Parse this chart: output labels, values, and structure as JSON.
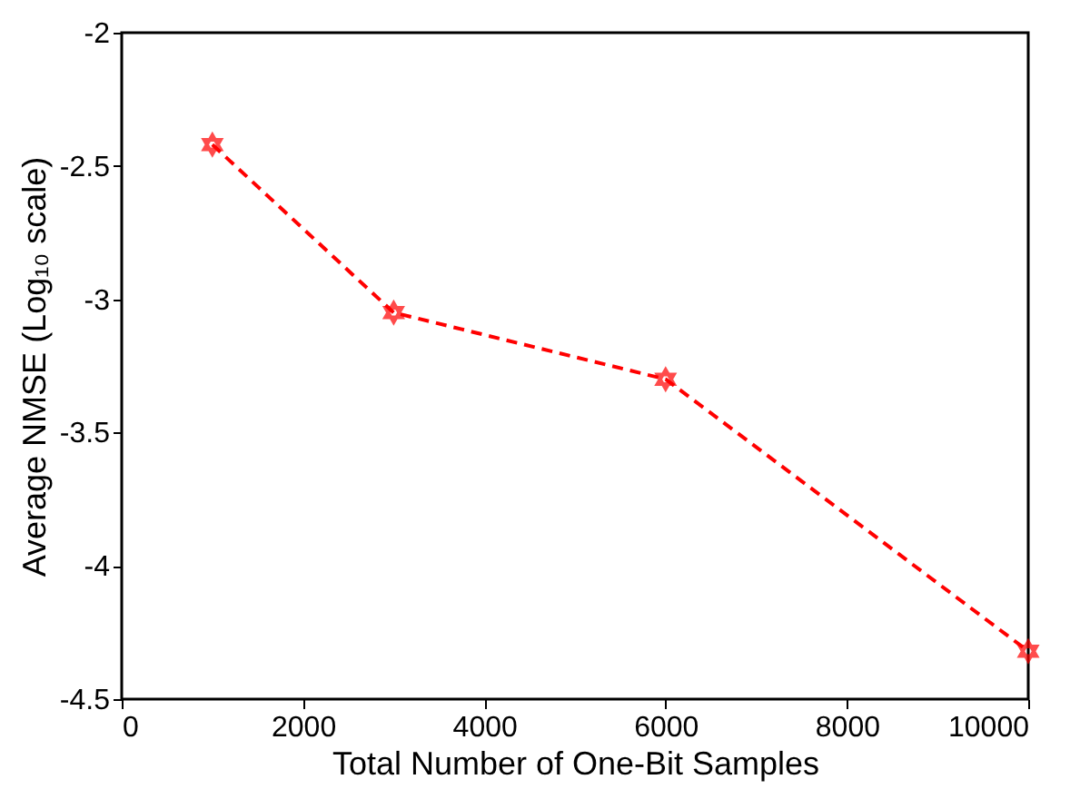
{
  "chart_data": {
    "type": "line",
    "xlabel": "Total Number of One-Bit Samples",
    "ylabel": "Average NMSE (Log₁₀ scale)",
    "x": [
      1000,
      3000,
      6000,
      10000
    ],
    "series": [
      {
        "color": "#ff0000",
        "values": [
          -2.42,
          -3.05,
          -3.3,
          -4.32
        ]
      }
    ],
    "xlim": [
      0,
      10000
    ],
    "xticks": [
      0,
      2000,
      4000,
      6000,
      8000,
      10000
    ],
    "ylim": [
      -4.5,
      -2
    ],
    "yticks": [
      -4.5,
      -4,
      -3.5,
      -3,
      -2.5,
      -2
    ],
    "marker": "star",
    "line_style": "dashed"
  }
}
